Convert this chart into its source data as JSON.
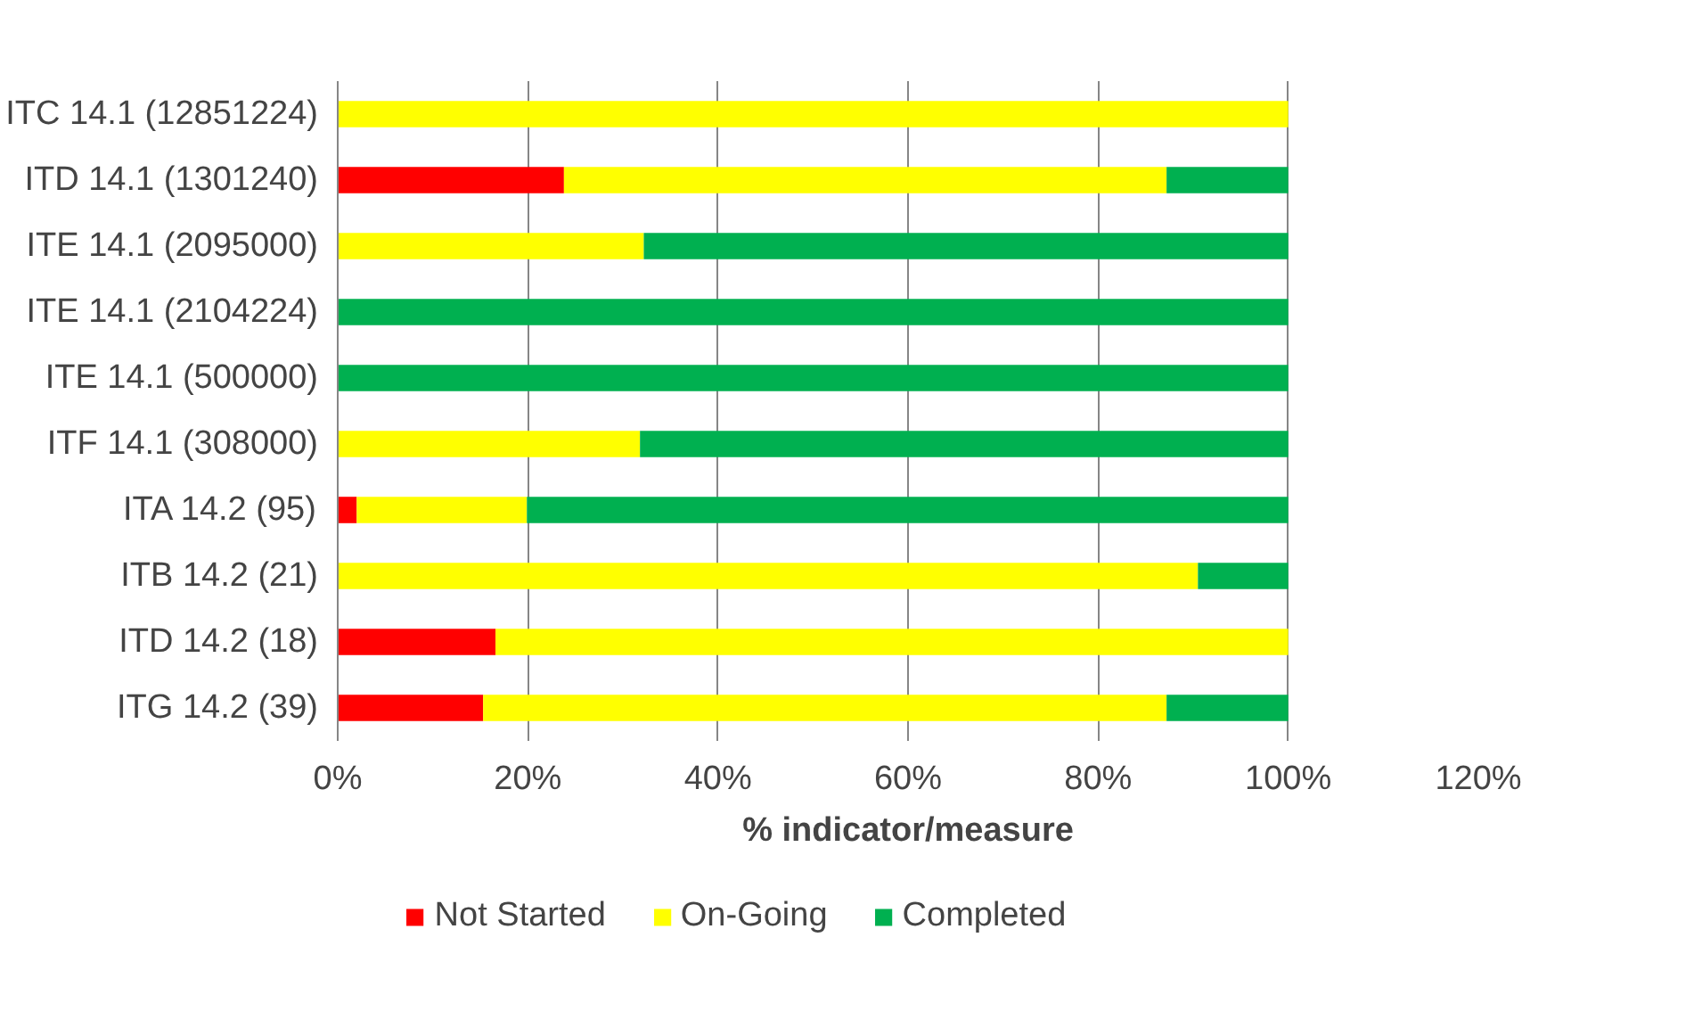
{
  "chart_data": {
    "type": "bar",
    "orientation": "horizontal",
    "stacked": true,
    "xlabel": "% indicator/measure",
    "categories": [
      "ITC 14.1 (12851224)",
      "ITD 14.1 (1301240)",
      "ITE 14.1 (2095000)",
      "ITE 14.1 (2104224)",
      "ITE 14.1 (500000)",
      "ITF 14.1 (308000)",
      "ITA 14.2 (95)",
      "ITB 14.2 (21)",
      "ITD 14.2 (18)",
      "ITG 14.2 (39)"
    ],
    "series": [
      {
        "name": "Not Started",
        "color": "#ff0000",
        "values": [
          0,
          23.8,
          0,
          0,
          0,
          0,
          2.0,
          0,
          16.6,
          15.3
        ]
      },
      {
        "name": "On-Going",
        "color": "#ffff00",
        "values": [
          100,
          63.4,
          32.2,
          0,
          0,
          31.8,
          17.9,
          90.5,
          83.4,
          71.9
        ]
      },
      {
        "name": "Completed",
        "color": "#00b050",
        "values": [
          0,
          12.8,
          67.8,
          100,
          100,
          68.2,
          80.1,
          9.5,
          0,
          12.8
        ]
      }
    ],
    "xlim": [
      0,
      120
    ],
    "xticks": [
      {
        "value": 0,
        "label": "0%"
      },
      {
        "value": 20,
        "label": "20%"
      },
      {
        "value": 40,
        "label": "40%"
      },
      {
        "value": 60,
        "label": "60%"
      },
      {
        "value": 80,
        "label": "80%"
      },
      {
        "value": 100,
        "label": "100%"
      },
      {
        "value": 120,
        "label": "120%"
      }
    ],
    "grid": "x",
    "legend": "bottom"
  }
}
